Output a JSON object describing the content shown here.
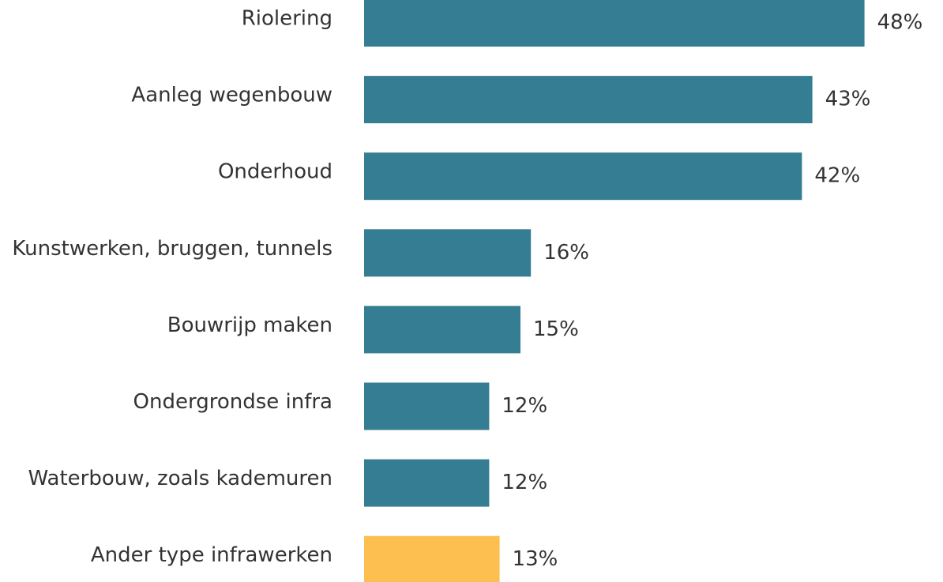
{
  "chart_data": {
    "type": "hbar",
    "categories": [
      "Riolering",
      "Aanleg wegenbouw",
      "Onderhoud",
      "Kunstwerken, bruggen, tunnels",
      "Bouwrijp maken",
      "Ondergrondse infra",
      "Waterbouw, zoals kademuren",
      "Ander type infrawerken"
    ],
    "values": [
      48,
      43,
      42,
      16,
      15,
      12,
      12,
      13
    ],
    "value_labels": [
      "48%",
      "43%",
      "42%",
      "16%",
      "15%",
      "12%",
      "12%",
      "13%"
    ],
    "colors": [
      "#357d92",
      "#357d92",
      "#357d92",
      "#357d92",
      "#357d92",
      "#357d92",
      "#357d92",
      "#fdbf4f"
    ]
  }
}
